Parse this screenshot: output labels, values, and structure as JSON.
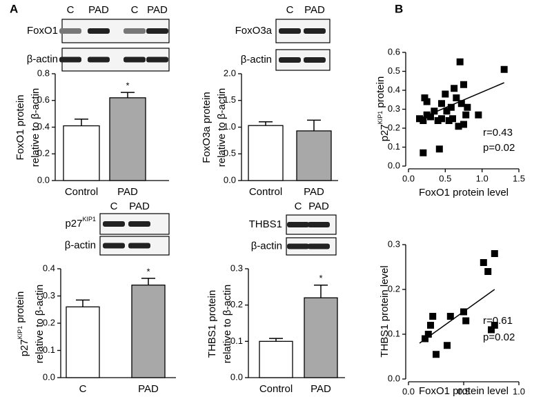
{
  "panels": [
    "A",
    "B"
  ],
  "chart_data": [
    {
      "type": "bar",
      "categories": [
        "Control",
        "PAD"
      ],
      "values": [
        0.41,
        0.62
      ],
      "errors": [
        0.05,
        0.04
      ],
      "colors": [
        "#ffffff",
        "#a8a8a8"
      ],
      "ylim": [
        0,
        0.8
      ],
      "yticks": [
        {
          "value": 0,
          "label": "0.0"
        },
        0.2,
        0.4,
        0.6,
        0.8
      ],
      "ylabel": [
        [
          "FoxO1 protein"
        ],
        [
          "relative to β-actin"
        ]
      ],
      "annotation": "*",
      "blot_labels": [
        "FoxO1",
        "β-actin"
      ],
      "lane_labels": [
        "C",
        "PAD",
        "C",
        "PAD"
      ]
    },
    {
      "type": "bar",
      "categories": [
        "Control",
        "PAD"
      ],
      "values": [
        1.03,
        0.93
      ],
      "errors": [
        0.07,
        0.2
      ],
      "colors": [
        "#ffffff",
        "#a8a8a8"
      ],
      "ylim": [
        0,
        2
      ],
      "yticks": [
        {
          "value": 0,
          "label": "0.0"
        },
        0.5,
        {
          "value": 1,
          "label": "1.0"
        },
        1.5,
        {
          "value": 2,
          "label": "2.0"
        }
      ],
      "ylabel": [
        [
          "FoxO3a protein"
        ],
        [
          "relative to β-actin"
        ]
      ],
      "blot_labels": [
        "FoxO3a",
        "β-actin"
      ],
      "lane_labels": [
        "C",
        "PAD"
      ]
    },
    {
      "type": "bar",
      "categories": [
        "C",
        "PAD"
      ],
      "values": [
        0.26,
        0.34
      ],
      "errors": [
        0.025,
        0.025
      ],
      "colors": [
        "#ffffff",
        "#a8a8a8"
      ],
      "ylim": [
        0,
        0.4
      ],
      "yticks": [
        {
          "value": 0,
          "label": "0.0"
        },
        0.1,
        0.2,
        0.3,
        0.4
      ],
      "ylabel": [
        [
          "p27",
          {
            "sup": "KIP1"
          },
          " protein"
        ],
        [
          "relative to β-actin"
        ]
      ],
      "annotation": "*",
      "blot_labels": [
        [
          "p27",
          {
            "sup": "KIP1"
          }
        ],
        "β-actin"
      ],
      "lane_labels": [
        "C",
        "PAD"
      ]
    },
    {
      "type": "bar",
      "categories": [
        "Control",
        "PAD"
      ],
      "values": [
        0.1,
        0.22
      ],
      "errors": [
        0.008,
        0.035
      ],
      "colors": [
        "#ffffff",
        "#a8a8a8"
      ],
      "ylim": [
        0,
        0.3
      ],
      "yticks": [
        {
          "value": 0,
          "label": "0.0"
        },
        0.1,
        0.2,
        0.3
      ],
      "ylabel": [
        [
          "THBS1 protein"
        ],
        [
          "relative to β-actin"
        ]
      ],
      "annotation": "*",
      "blot_labels": [
        "THBS1",
        "β-actin"
      ],
      "lane_labels": [
        "C",
        "PAD"
      ]
    },
    {
      "type": "scatter",
      "color": "#000000",
      "x": [
        0.15,
        0.2,
        0.2,
        0.22,
        0.25,
        0.25,
        0.3,
        0.35,
        0.4,
        0.42,
        0.45,
        0.45,
        0.5,
        0.52,
        0.55,
        0.58,
        0.6,
        0.62,
        0.65,
        0.68,
        0.7,
        0.72,
        0.75,
        0.75,
        0.78,
        0.8,
        0.95,
        1.3
      ],
      "y": [
        0.25,
        0.07,
        0.24,
        0.36,
        0.34,
        0.27,
        0.26,
        0.29,
        0.24,
        0.09,
        0.33,
        0.25,
        0.38,
        0.29,
        0.24,
        0.31,
        0.25,
        0.41,
        0.36,
        0.21,
        0.55,
        0.33,
        0.22,
        0.43,
        0.27,
        0.31,
        0.27,
        0.51
      ],
      "fit": {
        "x": [
          0.15,
          1.3
        ],
        "y": [
          0.25,
          0.44
        ]
      },
      "xlim": [
        0,
        1.5
      ],
      "xticks": [
        {
          "value": 0,
          "label": "0.0"
        },
        0.5,
        {
          "value": 1,
          "label": "1.0"
        },
        1.5
      ],
      "ylim": [
        0,
        0.6
      ],
      "yticks": [
        {
          "value": 0,
          "label": "0.0"
        },
        0.1,
        0.2,
        0.3,
        0.4,
        0.5,
        0.6
      ],
      "xlabel": "FoxO1 protein level",
      "ylabel": [
        [
          "p27",
          {
            "sup": "KIP1"
          },
          " protein"
        ]
      ],
      "annotations": [
        "r=0.43",
        "p=0.02"
      ]
    },
    {
      "type": "scatter",
      "color": "#000000",
      "x": [
        0.15,
        0.18,
        0.2,
        0.22,
        0.25,
        0.35,
        0.38,
        0.5,
        0.52,
        0.68,
        0.72,
        0.75,
        0.78,
        0.78
      ],
      "y": [
        0.09,
        0.1,
        0.12,
        0.14,
        0.055,
        0.075,
        0.14,
        0.15,
        0.13,
        0.26,
        0.24,
        0.11,
        0.28,
        0.12
      ],
      "fit": {
        "x": [
          0.1,
          0.78
        ],
        "y": [
          0.08,
          0.2
        ]
      },
      "xlim": [
        0,
        1
      ],
      "xticks": [
        {
          "value": 0,
          "label": "0.0"
        },
        0.5,
        {
          "value": 1,
          "label": "1.0"
        }
      ],
      "ylim": [
        0,
        0.3
      ],
      "yticks": [
        {
          "value": 0,
          "label": "0.0"
        },
        0.1,
        0.2,
        0.3
      ],
      "xlabel": "FoxO1 protein level",
      "ylabel": [
        [
          "THBS1 protein level"
        ]
      ],
      "annotations": [
        "r=0.61",
        "p=0.02"
      ]
    }
  ]
}
